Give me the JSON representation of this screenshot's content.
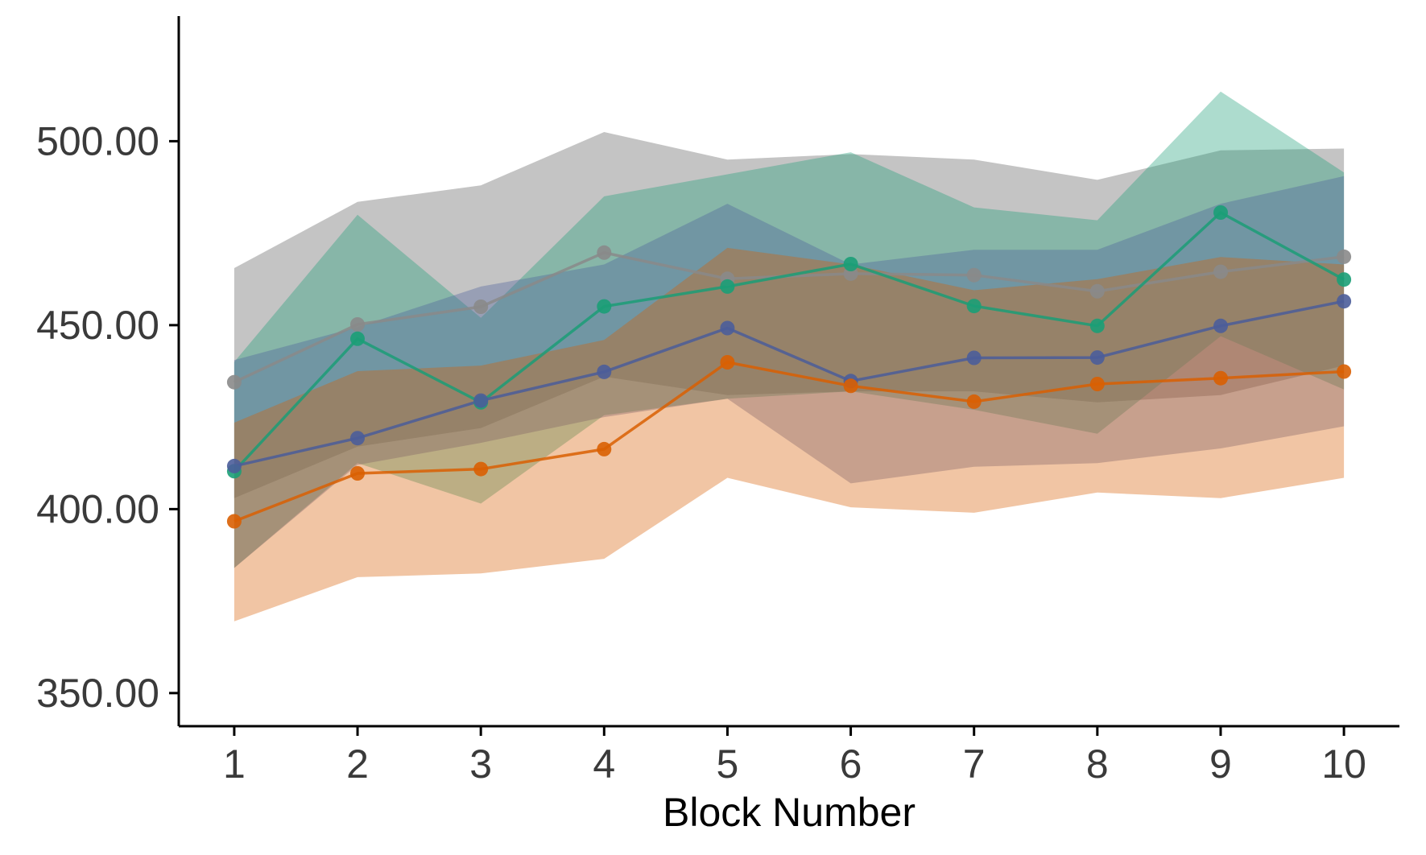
{
  "chart_data": {
    "type": "line",
    "title": "",
    "xlabel": "Block Number",
    "ylabel": "",
    "x": [
      1,
      2,
      3,
      4,
      5,
      6,
      7,
      8,
      9,
      10
    ],
    "xlim": [
      0.55,
      10.45
    ],
    "ylim": [
      341,
      534
    ],
    "yticks": [
      350,
      400,
      450,
      500
    ],
    "ytick_labels": [
      "350.00",
      "400.00",
      "450.00",
      "500.00"
    ],
    "xtick_labels": [
      "1",
      "2",
      "3",
      "4",
      "5",
      "6",
      "7",
      "8",
      "9",
      "10"
    ],
    "grid": false,
    "legend": "none",
    "series": [
      {
        "color": "#8a8a8a",
        "band_opacity": 0.5,
        "values": [
          434.5,
          450.2,
          455.0,
          469.7,
          462.6,
          464.0,
          463.6,
          459.2,
          464.5,
          468.6
        ],
        "lower": [
          403,
          417,
          422,
          436,
          431,
          432,
          432,
          429,
          431,
          439
        ],
        "upper": [
          465.5,
          483.5,
          488,
          502.5,
          495,
          496.5,
          495,
          489.5,
          497.5,
          498
        ]
      },
      {
        "color": "#1b9e77",
        "band_opacity": 0.36,
        "values": [
          410.3,
          446.3,
          429.0,
          455.1,
          460.5,
          466.6,
          455.2,
          449.8,
          480.6,
          462.4
        ],
        "lower": [
          384,
          412.5,
          401.5,
          425.5,
          430,
          432,
          427,
          420.5,
          447,
          432.5
        ],
        "upper": [
          440,
          480,
          452,
          485,
          491,
          497,
          482,
          478.5,
          513.5,
          491.5
        ]
      },
      {
        "color": "#4b5d9a",
        "band_opacity": 0.36,
        "values": [
          411.7,
          419.3,
          429.5,
          437.3,
          449.2,
          434.8,
          441.1,
          441.2,
          449.8,
          456.5
        ],
        "lower": [
          384,
          412,
          418,
          425,
          430,
          407,
          411.5,
          412.5,
          416.5,
          422.5
        ],
        "upper": [
          440.5,
          449.5,
          460.5,
          466.5,
          483,
          466.5,
          470.5,
          470.5,
          483,
          490.5
        ]
      },
      {
        "color": "#d95f02",
        "band_opacity": 0.36,
        "values": [
          396.7,
          409.7,
          410.9,
          416.3,
          439.9,
          433.5,
          429.2,
          434.0,
          435.6,
          437.4
        ],
        "lower": [
          369.5,
          381.5,
          382.5,
          386.5,
          408.5,
          400.5,
          399,
          404.5,
          403,
          408.5
        ],
        "upper": [
          423.5,
          437.5,
          439,
          446,
          471,
          466.5,
          459.5,
          462.5,
          468.5,
          466.5
        ]
      }
    ]
  }
}
